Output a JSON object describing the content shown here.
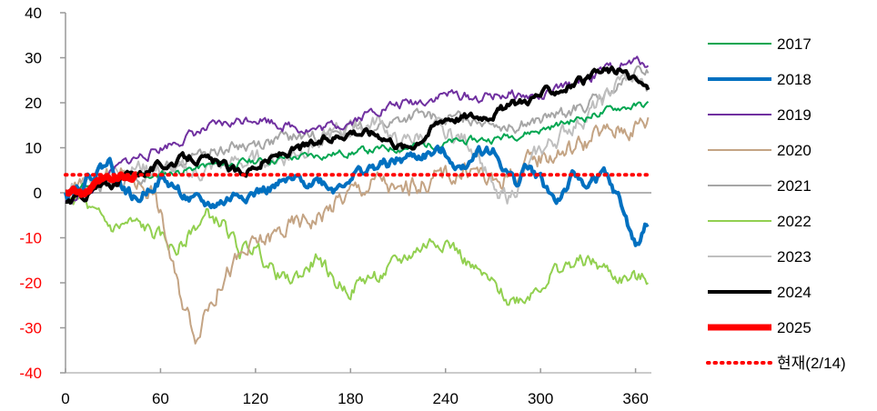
{
  "chart_data": {
    "type": "line",
    "title": "",
    "xlabel": "",
    "ylabel": "",
    "xlim": [
      0,
      370
    ],
    "ylim": [
      -40,
      40
    ],
    "x_ticks": [
      0,
      60,
      120,
      180,
      240,
      300,
      360
    ],
    "y_ticks": [
      40,
      30,
      20,
      10,
      0,
      -10,
      -20,
      -30,
      -40
    ],
    "y_tick_labels": [
      "40",
      "30",
      "20",
      "10",
      "0",
      "-10",
      "-20",
      "-30",
      "-40"
    ],
    "negative_tick_color": "#ff0000",
    "grid": false,
    "legend_position": "right",
    "series": [
      {
        "name": "2017",
        "color": "#00a651",
        "width": 2,
        "dash": "",
        "noise": 0.6,
        "seed": 11,
        "points": [
          [
            0,
            0
          ],
          [
            10,
            1
          ],
          [
            30,
            3
          ],
          [
            60,
            4
          ],
          [
            90,
            6
          ],
          [
            120,
            7
          ],
          [
            150,
            8
          ],
          [
            180,
            9
          ],
          [
            210,
            10
          ],
          [
            240,
            11
          ],
          [
            270,
            12
          ],
          [
            300,
            14
          ],
          [
            330,
            17
          ],
          [
            350,
            19
          ],
          [
            368,
            19.5
          ]
        ]
      },
      {
        "name": "2018",
        "color": "#0070c0",
        "width": 4,
        "dash": "",
        "noise": 0.9,
        "seed": 22,
        "points": [
          [
            0,
            0
          ],
          [
            10,
            2
          ],
          [
            20,
            5
          ],
          [
            28,
            7
          ],
          [
            35,
            2
          ],
          [
            45,
            -2
          ],
          [
            55,
            2
          ],
          [
            60,
            3
          ],
          [
            70,
            1
          ],
          [
            80,
            -2
          ],
          [
            90,
            -3
          ],
          [
            100,
            -2
          ],
          [
            110,
            0
          ],
          [
            120,
            0
          ],
          [
            140,
            2
          ],
          [
            160,
            3
          ],
          [
            170,
            1
          ],
          [
            180,
            4
          ],
          [
            200,
            6
          ],
          [
            220,
            8
          ],
          [
            240,
            9
          ],
          [
            250,
            5
          ],
          [
            260,
            10
          ],
          [
            270,
            9
          ],
          [
            280,
            4
          ],
          [
            285,
            2
          ],
          [
            290,
            6
          ],
          [
            300,
            3
          ],
          [
            310,
            -2
          ],
          [
            320,
            3
          ],
          [
            330,
            2
          ],
          [
            340,
            4
          ],
          [
            350,
            -2
          ],
          [
            360,
            -12
          ],
          [
            368,
            -6
          ]
        ]
      },
      {
        "name": "2019",
        "color": "#7030a0",
        "width": 2,
        "dash": "",
        "noise": 0.8,
        "seed": 33,
        "points": [
          [
            0,
            -2
          ],
          [
            10,
            -1
          ],
          [
            20,
            2
          ],
          [
            40,
            7
          ],
          [
            60,
            10
          ],
          [
            80,
            13
          ],
          [
            100,
            15
          ],
          [
            120,
            17
          ],
          [
            140,
            15
          ],
          [
            160,
            14
          ],
          [
            180,
            16
          ],
          [
            200,
            19
          ],
          [
            220,
            20
          ],
          [
            240,
            22
          ],
          [
            260,
            21
          ],
          [
            280,
            22
          ],
          [
            300,
            21
          ],
          [
            320,
            24
          ],
          [
            340,
            27
          ],
          [
            360,
            29
          ],
          [
            368,
            29
          ]
        ]
      },
      {
        "name": "2020",
        "color": "#c4a484",
        "width": 2,
        "dash": "",
        "noise": 1.6,
        "seed": 44,
        "points": [
          [
            0,
            0
          ],
          [
            20,
            2
          ],
          [
            40,
            4
          ],
          [
            55,
            1
          ],
          [
            60,
            -5
          ],
          [
            65,
            -12
          ],
          [
            70,
            -20
          ],
          [
            75,
            -25
          ],
          [
            80,
            -29
          ],
          [
            83,
            -31
          ],
          [
            88,
            -25
          ],
          [
            95,
            -22
          ],
          [
            100,
            -18
          ],
          [
            110,
            -15
          ],
          [
            120,
            -12
          ],
          [
            140,
            -8
          ],
          [
            160,
            -5
          ],
          [
            180,
            0
          ],
          [
            200,
            3
          ],
          [
            210,
            -1
          ],
          [
            220,
            2
          ],
          [
            240,
            4
          ],
          [
            260,
            5
          ],
          [
            270,
            2
          ],
          [
            280,
            4
          ],
          [
            290,
            5
          ],
          [
            300,
            8
          ],
          [
            320,
            10
          ],
          [
            340,
            13
          ],
          [
            368,
            16
          ]
        ]
      },
      {
        "name": "2021",
        "color": "#a6a6a6",
        "width": 2,
        "dash": "",
        "noise": 1.0,
        "seed": 55,
        "points": [
          [
            0,
            0
          ],
          [
            20,
            1
          ],
          [
            40,
            3
          ],
          [
            60,
            5
          ],
          [
            80,
            8
          ],
          [
            100,
            10
          ],
          [
            120,
            11
          ],
          [
            140,
            12
          ],
          [
            160,
            13
          ],
          [
            180,
            14
          ],
          [
            200,
            15
          ],
          [
            220,
            17
          ],
          [
            240,
            16
          ],
          [
            260,
            17
          ],
          [
            280,
            15
          ],
          [
            300,
            16
          ],
          [
            320,
            18
          ],
          [
            340,
            21
          ],
          [
            360,
            26
          ],
          [
            368,
            27
          ]
        ]
      },
      {
        "name": "2022",
        "color": "#92d050",
        "width": 2,
        "dash": "",
        "noise": 1.2,
        "seed": 66,
        "points": [
          [
            0,
            -1
          ],
          [
            10,
            -2
          ],
          [
            20,
            -6
          ],
          [
            30,
            -8
          ],
          [
            40,
            -7
          ],
          [
            50,
            -8
          ],
          [
            60,
            -10
          ],
          [
            70,
            -13
          ],
          [
            80,
            -8
          ],
          [
            90,
            -5
          ],
          [
            100,
            -7
          ],
          [
            110,
            -13
          ],
          [
            120,
            -12
          ],
          [
            130,
            -17
          ],
          [
            140,
            -20
          ],
          [
            150,
            -18
          ],
          [
            160,
            -14
          ],
          [
            170,
            -20
          ],
          [
            180,
            -21
          ],
          [
            190,
            -19
          ],
          [
            200,
            -18
          ],
          [
            210,
            -16
          ],
          [
            220,
            -13
          ],
          [
            230,
            -11
          ],
          [
            240,
            -10
          ],
          [
            250,
            -14
          ],
          [
            260,
            -18
          ],
          [
            270,
            -21
          ],
          [
            280,
            -24
          ],
          [
            290,
            -23
          ],
          [
            300,
            -20
          ],
          [
            310,
            -17
          ],
          [
            320,
            -16
          ],
          [
            330,
            -15
          ],
          [
            340,
            -17
          ],
          [
            350,
            -19
          ],
          [
            368,
            -19.5
          ]
        ]
      },
      {
        "name": "2023",
        "color": "#bfbfbf",
        "width": 2,
        "dash": "",
        "noise": 1.4,
        "seed": 77,
        "points": [
          [
            0,
            0
          ],
          [
            20,
            3
          ],
          [
            40,
            6
          ],
          [
            60,
            5
          ],
          [
            80,
            4
          ],
          [
            100,
            6
          ],
          [
            120,
            7
          ],
          [
            140,
            8
          ],
          [
            160,
            12
          ],
          [
            180,
            14
          ],
          [
            200,
            16
          ],
          [
            210,
            10
          ],
          [
            220,
            12
          ],
          [
            240,
            14
          ],
          [
            260,
            10
          ],
          [
            270,
            0
          ],
          [
            280,
            -1
          ],
          [
            290,
            4
          ],
          [
            300,
            9
          ],
          [
            320,
            15
          ],
          [
            340,
            20
          ],
          [
            350,
            25
          ],
          [
            360,
            25
          ],
          [
            368,
            22
          ]
        ]
      },
      {
        "name": "2024",
        "color": "#000000",
        "width": 4,
        "dash": "",
        "noise": 0.7,
        "seed": 88,
        "points": [
          [
            0,
            -2
          ],
          [
            10,
            -1
          ],
          [
            20,
            1
          ],
          [
            30,
            2
          ],
          [
            40,
            4
          ],
          [
            50,
            5
          ],
          [
            60,
            6
          ],
          [
            70,
            7
          ],
          [
            80,
            8
          ],
          [
            90,
            7
          ],
          [
            100,
            6
          ],
          [
            110,
            4
          ],
          [
            120,
            6
          ],
          [
            140,
            9
          ],
          [
            160,
            11
          ],
          [
            180,
            14
          ],
          [
            200,
            13
          ],
          [
            215,
            10
          ],
          [
            220,
            11
          ],
          [
            230,
            14
          ],
          [
            240,
            17
          ],
          [
            260,
            17
          ],
          [
            280,
            19
          ],
          [
            300,
            22
          ],
          [
            320,
            24
          ],
          [
            330,
            25
          ],
          [
            340,
            27
          ],
          [
            350,
            27
          ],
          [
            360,
            25
          ],
          [
            368,
            23
          ]
        ]
      },
      {
        "name": "2025",
        "color": "#ff0000",
        "width": 7,
        "dash": "",
        "noise": 0.4,
        "seed": 99,
        "points": [
          [
            0,
            0
          ],
          [
            5,
            1
          ],
          [
            10,
            -0.5
          ],
          [
            15,
            0.5
          ],
          [
            20,
            2
          ],
          [
            25,
            3
          ],
          [
            30,
            2.5
          ],
          [
            35,
            3.5
          ],
          [
            40,
            3
          ],
          [
            45,
            4
          ]
        ]
      },
      {
        "name": "현재(2/14)",
        "color": "#ff0000",
        "width": 4,
        "dash": "1.5 6",
        "noise": 0,
        "seed": 1,
        "points": [
          [
            0,
            4
          ],
          [
            370,
            4
          ]
        ]
      }
    ]
  }
}
